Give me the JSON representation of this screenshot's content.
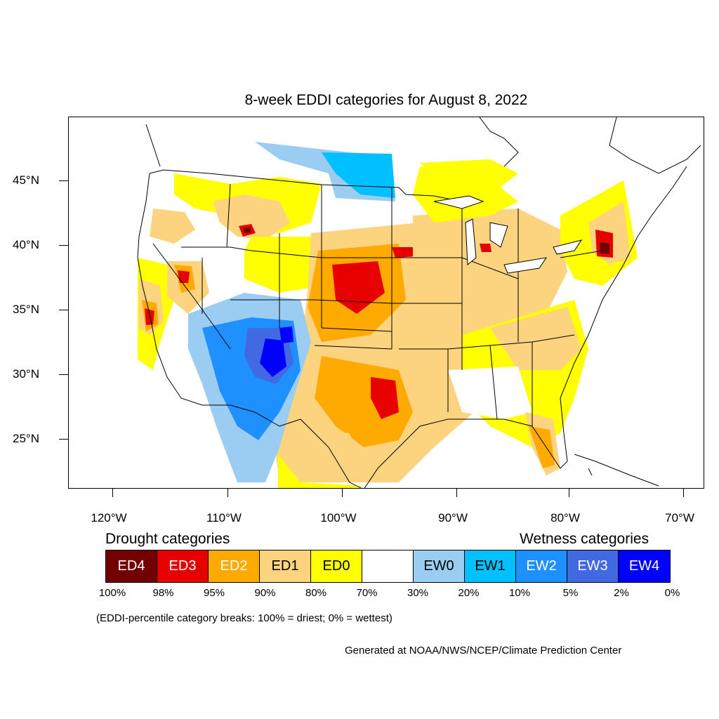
{
  "title": "8-week EDDI categories for August 8, 2022",
  "lat_labels": [
    "45°N",
    "40°N",
    "35°N",
    "30°N",
    "25°N"
  ],
  "lon_labels": [
    "120°W",
    "110°W",
    "100°W",
    "90°W",
    "80°W",
    "70°W"
  ],
  "legend": {
    "drought_heading": "Drought categories",
    "wetness_heading": "Wetness categories",
    "categories": [
      {
        "label": "ED4",
        "color": "#730000",
        "text_color": "#ffffff"
      },
      {
        "label": "ED3",
        "color": "#e60000",
        "text_color": "#ffffff"
      },
      {
        "label": "ED2",
        "color": "#ffaa00",
        "text_color": "#ffffff"
      },
      {
        "label": "ED1",
        "color": "#fcd37f",
        "text_color": "#000000"
      },
      {
        "label": "ED0",
        "color": "#ffff00",
        "text_color": "#000000"
      },
      {
        "label": "",
        "color": "#ffffff",
        "text_color": "#000000"
      },
      {
        "label": "EW0",
        "color": "#9bcdf2",
        "text_color": "#000000"
      },
      {
        "label": "EW1",
        "color": "#00c0ff",
        "text_color": "#000000"
      },
      {
        "label": "EW2",
        "color": "#1e90ff",
        "text_color": "#ffffff"
      },
      {
        "label": "EW3",
        "color": "#4169e1",
        "text_color": "#ffffff"
      },
      {
        "label": "EW4",
        "color": "#0000ff",
        "text_color": "#ffffff"
      }
    ],
    "percentiles": [
      "100%",
      "98%",
      "95%",
      "90%",
      "80%",
      "70%",
      "30%",
      "20%",
      "10%",
      "5%",
      "2%",
      "0%"
    ]
  },
  "note": "(EDDI-percentile category breaks: 100% = driest; 0% = wettest)",
  "credit": "Generated at NOAA/NWS/NCEP/Climate Prediction Center"
}
